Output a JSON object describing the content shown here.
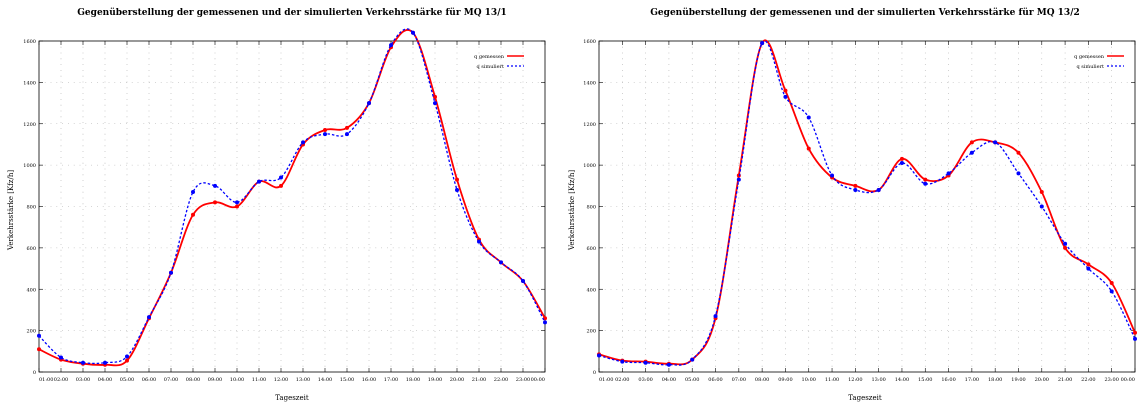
{
  "chart_data": [
    {
      "type": "line",
      "title": "Gegenüberstellung der gemessenen und der simulierten Verkehrsstärke für MQ 13/1",
      "xlabel": "Tageszeit",
      "ylabel": "Verkehrsstärke [Kfz/h]",
      "categories": [
        "01:00",
        "02:00",
        "03:00",
        "04:00",
        "05:00",
        "06:00",
        "07:00",
        "08:00",
        "09:00",
        "10:00",
        "11:00",
        "12:00",
        "13:00",
        "14:00",
        "15:00",
        "16:00",
        "17:00",
        "18:00",
        "19:00",
        "20:00",
        "21:00",
        "22:00",
        "23:00",
        "00:00"
      ],
      "ylim": [
        0,
        1600
      ],
      "yticks": [
        0,
        200,
        400,
        600,
        800,
        1000,
        1200,
        1400,
        1600
      ],
      "grid": true,
      "legend_position": "top-right",
      "series": [
        {
          "name": "q gemessen",
          "color": "#ff0000",
          "line": "solid",
          "values": [
            110,
            60,
            40,
            35,
            55,
            260,
            480,
            760,
            820,
            800,
            920,
            900,
            1100,
            1170,
            1180,
            1300,
            1570,
            1640,
            1330,
            930,
            640,
            530,
            440,
            260
          ]
        },
        {
          "name": "q simuliert",
          "color": "#0000ff",
          "line": "dashed",
          "values": [
            175,
            70,
            45,
            45,
            75,
            265,
            480,
            870,
            900,
            820,
            920,
            940,
            1110,
            1150,
            1150,
            1300,
            1580,
            1640,
            1300,
            880,
            630,
            530,
            440,
            240
          ]
        }
      ]
    },
    {
      "type": "line",
      "title": "Gegenüberstellung der gemessenen und der simulierten Verkehrsstärke für MQ 13/2",
      "xlabel": "Tageszeit",
      "ylabel": "Verkehrsstärke [Kfz/h]",
      "categories": [
        "01:00",
        "02:00",
        "03:00",
        "04:00",
        "05:00",
        "06:00",
        "07:00",
        "08:00",
        "09:00",
        "10:00",
        "11:00",
        "12:00",
        "13:00",
        "14:00",
        "15:00",
        "16:00",
        "17:00",
        "18:00",
        "19:00",
        "20:00",
        "21:00",
        "22:00",
        "23:00",
        "00:00"
      ],
      "ylim": [
        0,
        1600
      ],
      "yticks": [
        0,
        200,
        400,
        600,
        800,
        1000,
        1200,
        1400,
        1600
      ],
      "grid": true,
      "legend_position": "top-right",
      "series": [
        {
          "name": "q gemessen",
          "color": "#ff0000",
          "line": "solid",
          "values": [
            85,
            55,
            50,
            40,
            60,
            260,
            950,
            1590,
            1360,
            1080,
            940,
            900,
            880,
            1030,
            930,
            950,
            1110,
            1110,
            1060,
            870,
            600,
            520,
            430,
            190
          ]
        },
        {
          "name": "q simuliert",
          "color": "#0000ff",
          "line": "dashed",
          "values": [
            80,
            50,
            45,
            35,
            60,
            270,
            930,
            1590,
            1330,
            1230,
            950,
            880,
            880,
            1010,
            910,
            960,
            1060,
            1110,
            960,
            800,
            620,
            500,
            390,
            160
          ]
        }
      ]
    }
  ]
}
